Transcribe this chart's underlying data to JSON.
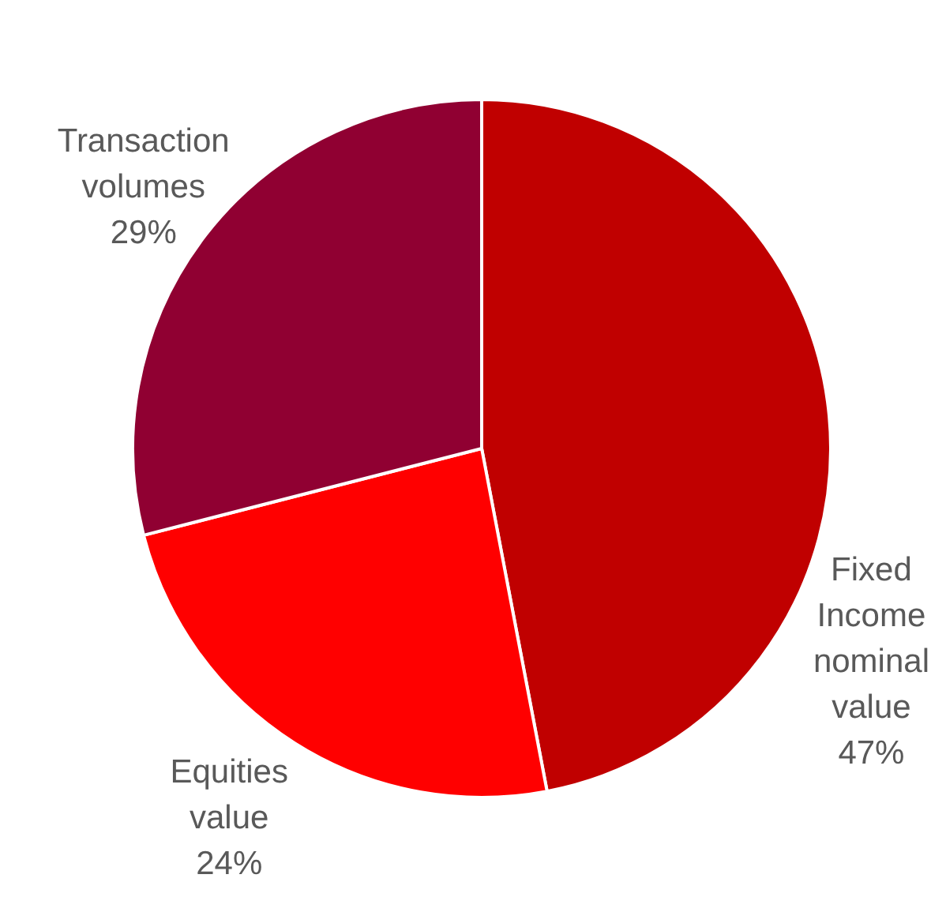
{
  "chart_data": {
    "type": "pie",
    "categories": [
      "Fixed Income nominal value",
      "Equities value",
      "Transaction volumes"
    ],
    "values": [
      47,
      24,
      29
    ],
    "colors": [
      "#c00000",
      "#ff0000",
      "#900032"
    ],
    "value_labels": [
      "47%",
      "24%",
      "29%"
    ]
  }
}
